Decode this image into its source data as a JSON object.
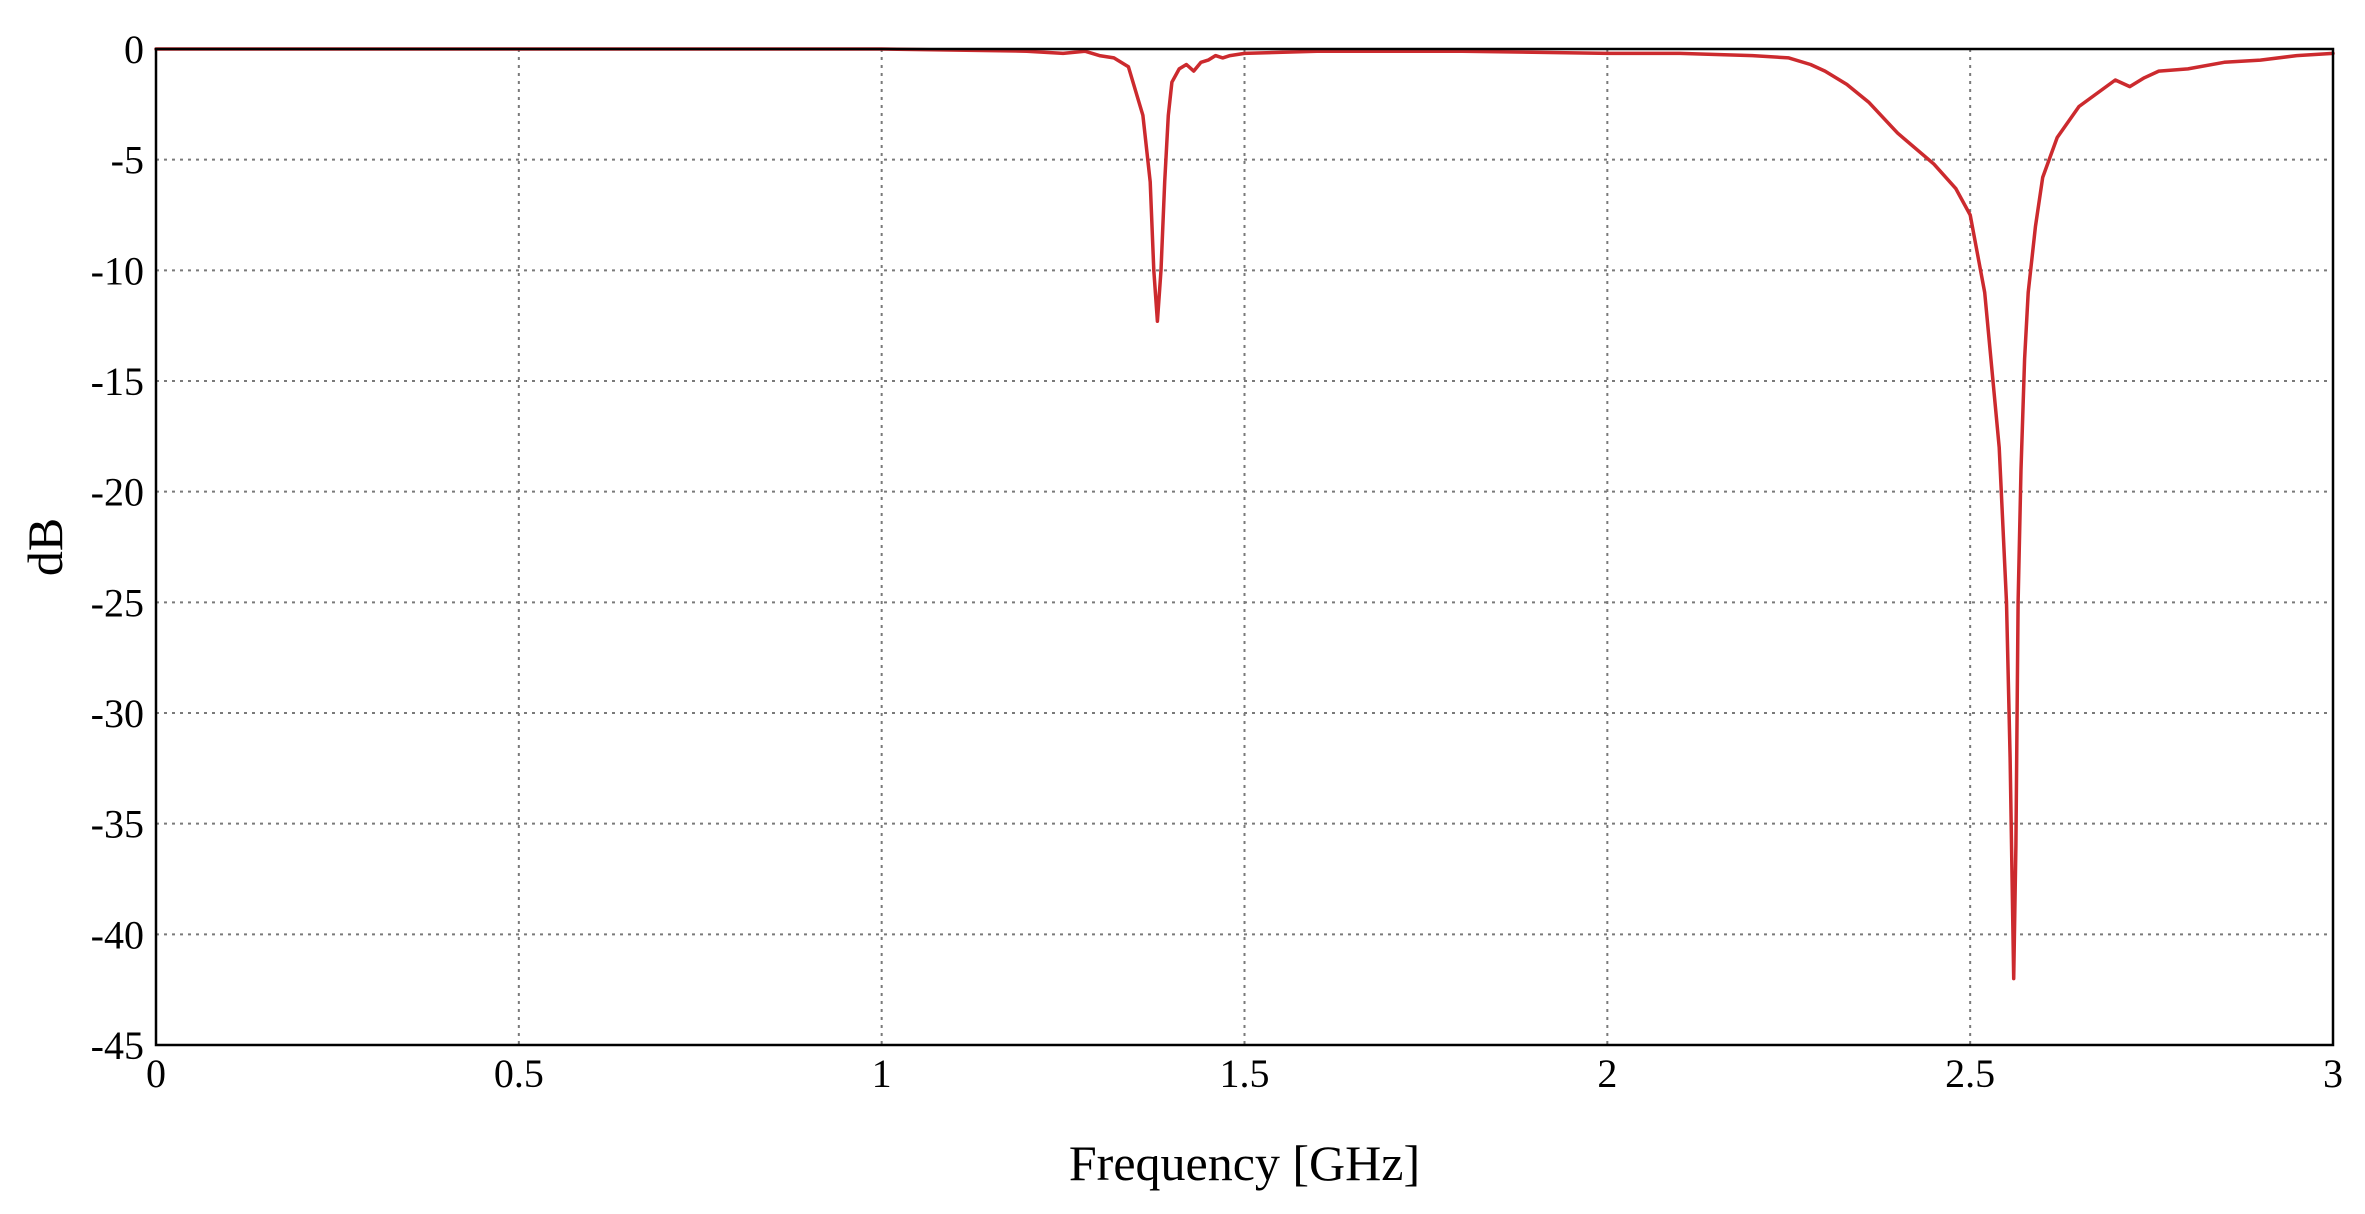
{
  "chart_data": {
    "type": "line",
    "title": "",
    "xlabel": "Frequency [GHz]",
    "ylabel": "dB",
    "xlim": [
      0,
      3
    ],
    "ylim": [
      -45,
      0
    ],
    "grid": true,
    "x_ticks": [
      0,
      0.5,
      1,
      1.5,
      2,
      2.5,
      3
    ],
    "x_tick_labels": [
      "0",
      "0.5",
      "1",
      "1.5",
      "2",
      "2.5",
      "3"
    ],
    "y_ticks": [
      0,
      -5,
      -10,
      -15,
      -20,
      -25,
      -30,
      -35,
      -40,
      -45
    ],
    "y_tick_labels": [
      "0",
      "-5",
      "-10",
      "-15",
      "-20",
      "-25",
      "-30",
      "-35",
      "-40",
      "-45"
    ],
    "series": [
      {
        "color": "#cc2a2e",
        "x": [
          0,
          0.5,
          1.0,
          1.2,
          1.25,
          1.28,
          1.3,
          1.32,
          1.34,
          1.36,
          1.37,
          1.375,
          1.38,
          1.385,
          1.39,
          1.395,
          1.4,
          1.41,
          1.42,
          1.43,
          1.44,
          1.45,
          1.46,
          1.47,
          1.48,
          1.5,
          1.6,
          1.8,
          2.0,
          2.1,
          2.2,
          2.25,
          2.28,
          2.3,
          2.33,
          2.36,
          2.4,
          2.45,
          2.48,
          2.5,
          2.52,
          2.54,
          2.55,
          2.555,
          2.56,
          2.563,
          2.566,
          2.57,
          2.575,
          2.58,
          2.59,
          2.6,
          2.62,
          2.65,
          2.7,
          2.72,
          2.74,
          2.76,
          2.8,
          2.85,
          2.9,
          2.95,
          3.0
        ],
        "y": [
          0,
          0,
          0,
          -0.1,
          -0.2,
          -0.1,
          -0.3,
          -0.4,
          -0.8,
          -3,
          -6,
          -10,
          -12.3,
          -10,
          -6,
          -3,
          -1.5,
          -0.9,
          -0.7,
          -1.0,
          -0.6,
          -0.5,
          -0.3,
          -0.4,
          -0.3,
          -0.2,
          -0.1,
          -0.1,
          -0.2,
          -0.2,
          -0.3,
          -0.4,
          -0.7,
          -1.0,
          -1.6,
          -2.4,
          -3.8,
          -5.2,
          -6.3,
          -7.5,
          -11,
          -18,
          -25,
          -32,
          -42,
          -36,
          -25,
          -19,
          -14,
          -11,
          -8,
          -5.8,
          -4,
          -2.6,
          -1.4,
          -1.7,
          -1.3,
          -1.0,
          -0.9,
          -0.6,
          -0.5,
          -0.3,
          -0.2
        ]
      }
    ]
  }
}
